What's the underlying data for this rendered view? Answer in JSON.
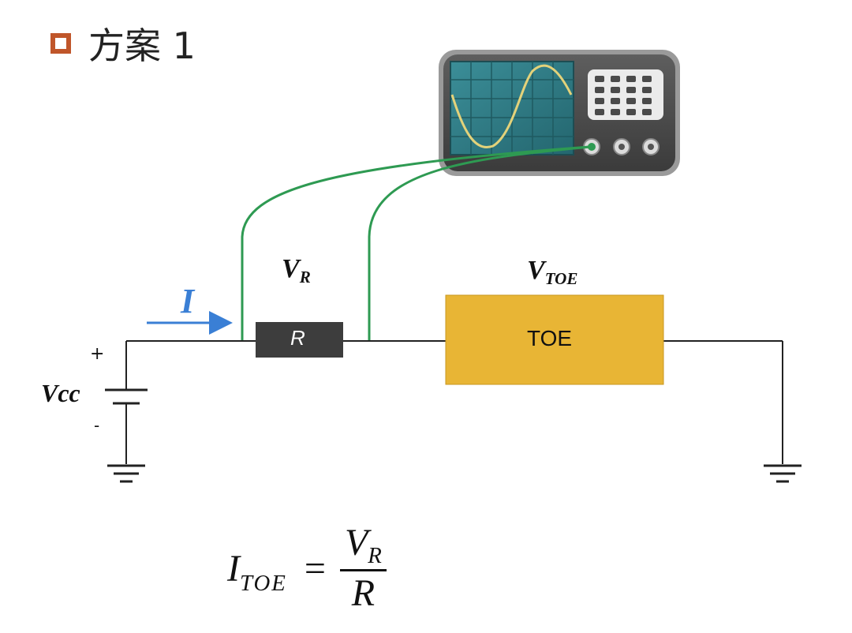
{
  "title": {
    "text": "方案 1"
  },
  "labels": {
    "current": "I",
    "vr_main": "V",
    "vr_sub": "R",
    "vtoe_main": "V",
    "vtoe_sub": "TOE",
    "vcc": "Vcc",
    "plus": "+",
    "minus": "-"
  },
  "components": {
    "resistor_label": "R",
    "toe_label": "TOE"
  },
  "formula": {
    "lhs_main": "I",
    "lhs_sub": "TOE",
    "equals": "=",
    "numerator_main": "V",
    "numerator_sub": "R",
    "denominator": "R"
  },
  "colors": {
    "title_box": "#c0562a",
    "probe_wire": "#2e9a52",
    "current_arrow": "#3a7fd5",
    "resistor": "#3d3d3d",
    "toe_box": "#e8b535",
    "scope_body": "#4a4a4a",
    "scope_screen": "#2f7c86",
    "sine_wave": "#e3d27a"
  }
}
